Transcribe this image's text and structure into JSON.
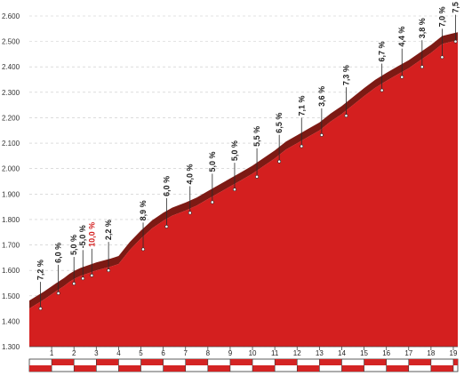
{
  "chart_data": {
    "type": "area",
    "title": "",
    "xlabel": "",
    "ylabel": "",
    "xlim": [
      0,
      19.2
    ],
    "ylim": [
      1300,
      2600
    ],
    "y_ticks": [
      "1.300",
      "1.400",
      "1.500",
      "1.600",
      "1.700",
      "1.800",
      "1.900",
      "2.000",
      "2.100",
      "2.200",
      "2.300",
      "2.400",
      "2.500",
      "2.600"
    ],
    "x_ticks": [
      "1",
      "2",
      "3",
      "4",
      "5",
      "6",
      "7",
      "8",
      "9",
      "10",
      "11",
      "12",
      "13",
      "14",
      "15",
      "16",
      "17",
      "18",
      "19"
    ],
    "grid": "horizontal-dashed",
    "profile": {
      "x": [
        0,
        0.65,
        1.2,
        1.55,
        1.8,
        2.05,
        2.3,
        3.0,
        3.65,
        4.0,
        4.5,
        5.0,
        5.5,
        6.0,
        6.4,
        7.0,
        7.5,
        8.0,
        8.5,
        9.0,
        9.5,
        10.0,
        10.5,
        11.0,
        11.5,
        12.0,
        12.5,
        13.0,
        13.5,
        14.0,
        14.5,
        15.0,
        15.5,
        16.0,
        16.5,
        17.0,
        17.5,
        18.0,
        18.5,
        19.2
      ],
      "y": [
        1450,
        1485,
        1518,
        1538,
        1555,
        1568,
        1578,
        1600,
        1615,
        1625,
        1680,
        1725,
        1765,
        1795,
        1815,
        1835,
        1855,
        1880,
        1905,
        1930,
        1955,
        1980,
        2010,
        2040,
        2075,
        2100,
        2125,
        2150,
        2185,
        2215,
        2250,
        2285,
        2318,
        2345,
        2370,
        2395,
        2425,
        2455,
        2490,
        2505
      ]
    },
    "segments": [
      {
        "label": "7,2 %",
        "x": 0.5,
        "y": 1450,
        "color": "#222222"
      },
      {
        "label": "6,0 %",
        "x": 1.3,
        "y": 1510,
        "color": "#222222"
      },
      {
        "label": "5,0 %",
        "x": 2.0,
        "y": 1548,
        "color": "#222222"
      },
      {
        "label": "-5,0 %",
        "x": 2.4,
        "y": 1568,
        "color": "#222222"
      },
      {
        "label": "10,0 %",
        "x": 2.8,
        "y": 1580,
        "color": "#d42222"
      },
      {
        "label": "2,2 %",
        "x": 3.55,
        "y": 1600,
        "color": "#222222"
      },
      {
        "label": "8,9 %",
        "x": 5.1,
        "y": 1683,
        "color": "#222222"
      },
      {
        "label": "6,0 %",
        "x": 6.15,
        "y": 1772,
        "color": "#222222"
      },
      {
        "label": "4,0 %",
        "x": 7.2,
        "y": 1826,
        "color": "#222222"
      },
      {
        "label": "5,0 %",
        "x": 8.2,
        "y": 1868,
        "color": "#222222"
      },
      {
        "label": "5,0 %",
        "x": 9.2,
        "y": 1918,
        "color": "#222222"
      },
      {
        "label": "5,5 %",
        "x": 10.2,
        "y": 1968,
        "color": "#222222"
      },
      {
        "label": "6,5 %",
        "x": 11.2,
        "y": 2028,
        "color": "#222222"
      },
      {
        "label": "7,1 %",
        "x": 12.2,
        "y": 2088,
        "color": "#222222"
      },
      {
        "label": "3,6 %",
        "x": 13.1,
        "y": 2132,
        "color": "#222222"
      },
      {
        "label": "7,3 %",
        "x": 14.2,
        "y": 2208,
        "color": "#222222"
      },
      {
        "label": "6,7 %",
        "x": 15.8,
        "y": 2308,
        "color": "#222222"
      },
      {
        "label": "4,4 %",
        "x": 16.7,
        "y": 2360,
        "color": "#222222"
      },
      {
        "label": "3,8 %",
        "x": 17.6,
        "y": 2400,
        "color": "#222222"
      },
      {
        "label": "7,0 %",
        "x": 18.5,
        "y": 2438,
        "color": "#222222"
      },
      {
        "label": "7,5 %",
        "x": 19.1,
        "y": 2500,
        "color": "#222222"
      }
    ],
    "colors": {
      "fill": "#d41f1f",
      "top_band": "#7d1a14",
      "leader": "#2a2a2a",
      "grid": "#c8c8c8",
      "strip_red": "#d42424"
    }
  }
}
